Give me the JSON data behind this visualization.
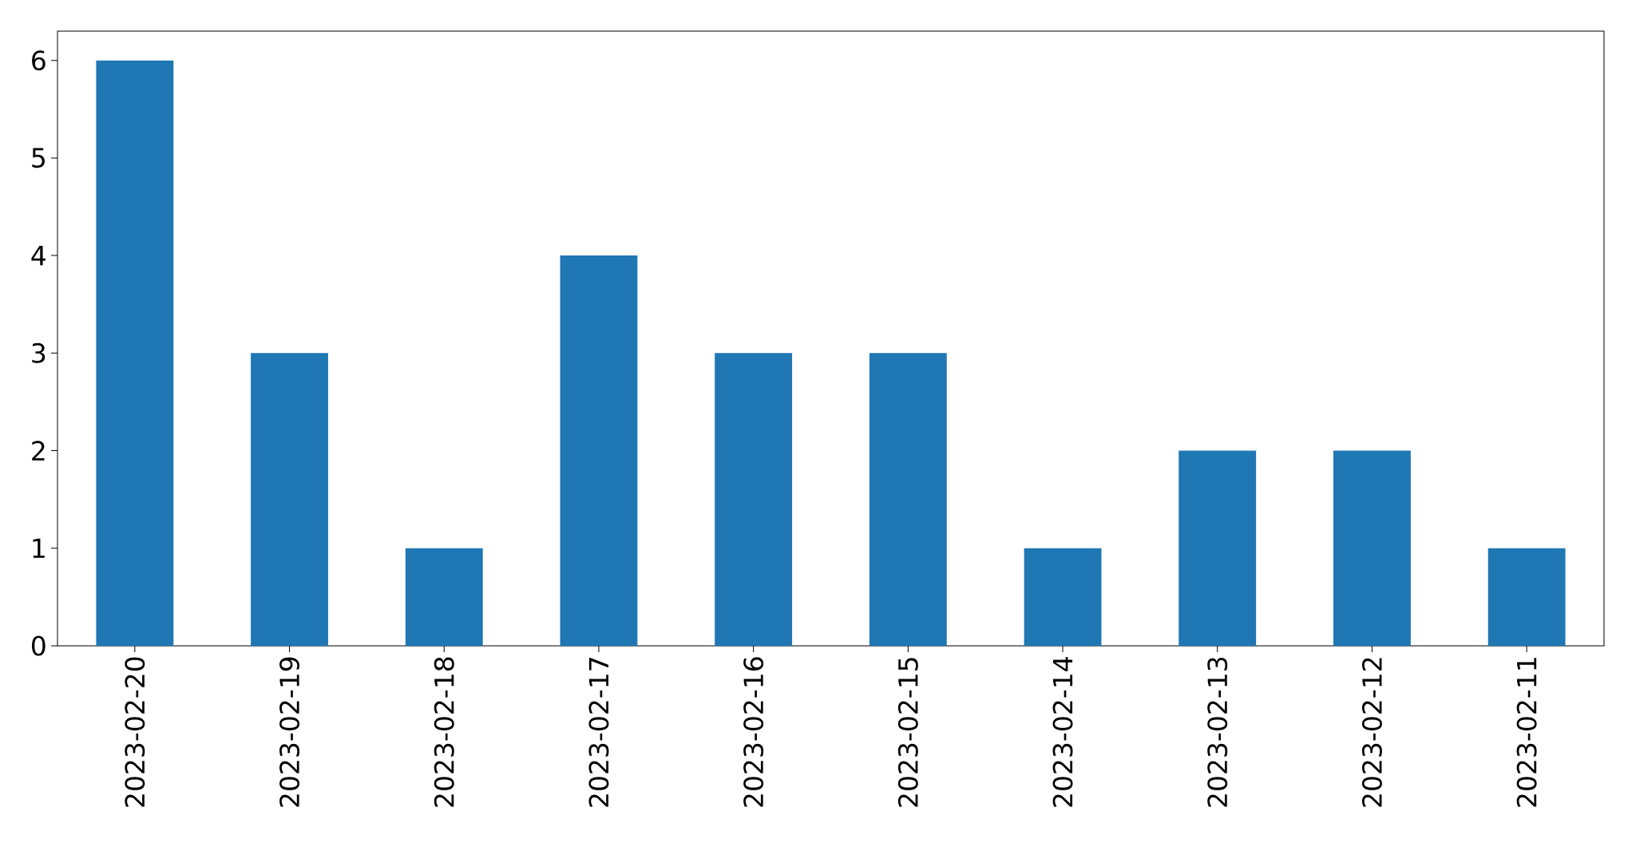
{
  "chart_data": {
    "type": "bar",
    "categories": [
      "2023-02-20",
      "2023-02-19",
      "2023-02-18",
      "2023-02-17",
      "2023-02-16",
      "2023-02-15",
      "2023-02-14",
      "2023-02-13",
      "2023-02-12",
      "2023-02-11"
    ],
    "values": [
      6,
      3,
      1,
      4,
      3,
      3,
      1,
      2,
      2,
      1
    ],
    "color": "#1f77b4",
    "ylim": [
      0,
      6.3
    ],
    "yticks": [
      0,
      1,
      2,
      3,
      4,
      5,
      6
    ]
  }
}
